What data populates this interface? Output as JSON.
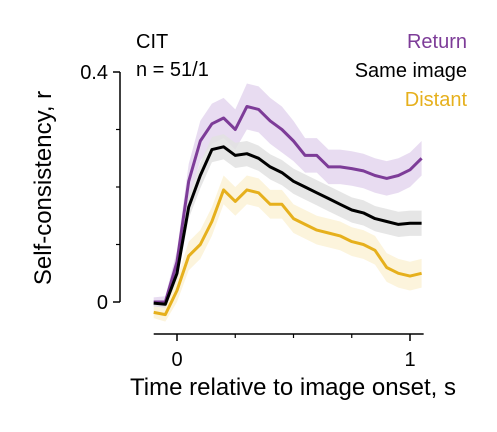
{
  "chart_data": {
    "type": "line",
    "annotation_lines": [
      "CIT",
      "n = 51/1"
    ],
    "xlabel": "Time relative to image onset, s",
    "ylabel": "Self-consistency, r",
    "x_ticks": [
      0,
      1
    ],
    "x_minor_ticks": [
      0.25,
      0.5,
      0.75
    ],
    "y_ticks": [
      0,
      0.4
    ],
    "y_minor_ticks": [
      0.1,
      0.2,
      0.3
    ],
    "xlim": [
      -0.25,
      1.05
    ],
    "ylim": [
      -0.05,
      0.4
    ],
    "legend_position": "top-right",
    "grid": false,
    "series": [
      {
        "name": "Return",
        "color": "#7d3c98",
        "band_color": "#e4d6ee",
        "x": [
          -0.1,
          -0.05,
          0.0,
          0.05,
          0.1,
          0.15,
          0.2,
          0.25,
          0.3,
          0.35,
          0.4,
          0.45,
          0.5,
          0.55,
          0.6,
          0.65,
          0.7,
          0.75,
          0.8,
          0.85,
          0.9,
          0.95,
          1.0,
          1.05
        ],
        "values": [
          0.0,
          0.0,
          0.07,
          0.21,
          0.28,
          0.31,
          0.32,
          0.3,
          0.34,
          0.335,
          0.315,
          0.3,
          0.28,
          0.255,
          0.255,
          0.235,
          0.235,
          0.232,
          0.228,
          0.22,
          0.215,
          0.22,
          0.23,
          0.25
        ],
        "band_halfwidth": [
          0.008,
          0.01,
          0.02,
          0.03,
          0.035,
          0.035,
          0.035,
          0.035,
          0.04,
          0.04,
          0.04,
          0.04,
          0.035,
          0.03,
          0.03,
          0.03,
          0.03,
          0.03,
          0.03,
          0.03,
          0.03,
          0.03,
          0.03,
          0.03
        ]
      },
      {
        "name": "Same image",
        "color": "#000000",
        "band_color": "#e2e2e2",
        "x": [
          -0.1,
          -0.05,
          0.0,
          0.05,
          0.1,
          0.15,
          0.2,
          0.25,
          0.3,
          0.35,
          0.4,
          0.45,
          0.5,
          0.55,
          0.6,
          0.65,
          0.7,
          0.75,
          0.8,
          0.85,
          0.9,
          0.95,
          1.0,
          1.05
        ],
        "values": [
          -0.002,
          -0.004,
          0.05,
          0.165,
          0.22,
          0.265,
          0.27,
          0.255,
          0.258,
          0.25,
          0.235,
          0.225,
          0.21,
          0.2,
          0.19,
          0.18,
          0.17,
          0.16,
          0.155,
          0.145,
          0.14,
          0.135,
          0.137,
          0.137
        ],
        "band_halfwidth": [
          0.005,
          0.006,
          0.015,
          0.02,
          0.022,
          0.022,
          0.022,
          0.022,
          0.022,
          0.022,
          0.022,
          0.022,
          0.022,
          0.022,
          0.022,
          0.022,
          0.022,
          0.022,
          0.022,
          0.022,
          0.022,
          0.022,
          0.022,
          0.022
        ]
      },
      {
        "name": "Distant",
        "color": "#e6b01d",
        "band_color": "#fbf2d6",
        "x": [
          -0.1,
          -0.05,
          0.0,
          0.05,
          0.1,
          0.15,
          0.2,
          0.25,
          0.3,
          0.35,
          0.4,
          0.45,
          0.5,
          0.55,
          0.6,
          0.65,
          0.7,
          0.75,
          0.8,
          0.85,
          0.9,
          0.95,
          1.0,
          1.05
        ],
        "values": [
          -0.018,
          -0.022,
          0.02,
          0.08,
          0.1,
          0.14,
          0.195,
          0.175,
          0.195,
          0.19,
          0.17,
          0.17,
          0.145,
          0.135,
          0.125,
          0.12,
          0.115,
          0.105,
          0.1,
          0.09,
          0.06,
          0.05,
          0.045,
          0.05
        ],
        "band_halfwidth": [
          0.01,
          0.012,
          0.02,
          0.025,
          0.025,
          0.025,
          0.025,
          0.025,
          0.025,
          0.025,
          0.025,
          0.025,
          0.025,
          0.025,
          0.025,
          0.025,
          0.025,
          0.025,
          0.025,
          0.025,
          0.025,
          0.025,
          0.025,
          0.025
        ]
      }
    ]
  }
}
